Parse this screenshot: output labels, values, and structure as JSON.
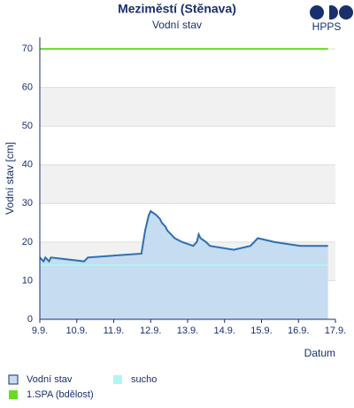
{
  "logo": "HPPS",
  "chart_data": {
    "type": "line",
    "title": "Meziměstí (Stěnava)",
    "subtitle": "Vodní stav",
    "y_label": "Vodní stav [cm]",
    "x_label": "Datum",
    "xlim": [
      9,
      17
    ],
    "xticks": [
      {
        "value": 9,
        "label": "9.9."
      },
      {
        "value": 10,
        "label": "10.9."
      },
      {
        "value": 11,
        "label": "11.9."
      },
      {
        "value": 12,
        "label": "12.9."
      },
      {
        "value": 13,
        "label": "13.9."
      },
      {
        "value": 14,
        "label": "14.9."
      },
      {
        "value": 15,
        "label": "15.9."
      },
      {
        "value": 16,
        "label": "16.9."
      },
      {
        "value": 17,
        "label": "17.9."
      }
    ],
    "ylim": [
      0,
      73
    ],
    "yticks": [
      0,
      10,
      20,
      30,
      40,
      50,
      60,
      70
    ],
    "grid": true,
    "series": [
      {
        "name": "Vodní stav",
        "color": "#2e6fb0",
        "fill": "#c6dcf0",
        "area": true,
        "x": [
          9,
          9.1,
          9.15,
          9.25,
          9.3,
          10.2,
          10.3,
          11.75,
          11.8,
          11.85,
          11.9,
          11.95,
          12.0,
          12.15,
          12.25,
          12.3,
          12.4,
          12.45,
          12.55,
          12.65,
          12.85,
          13.15,
          13.25,
          13.3,
          13.35,
          13.5,
          13.6,
          14.25,
          14.7,
          14.8,
          14.9,
          15.35,
          16.05,
          16.8
        ],
        "values": [
          16,
          15,
          16,
          15,
          16,
          15,
          16,
          17,
          20,
          23,
          25,
          27,
          28,
          27,
          26,
          25,
          24,
          23,
          22,
          21,
          20,
          19,
          20,
          22,
          21,
          20,
          19,
          18,
          19,
          20,
          21,
          20,
          19,
          19
        ]
      },
      {
        "name": "sucho",
        "color": "#aef6f6",
        "x": [
          9,
          16.8
        ],
        "values": [
          14,
          14
        ]
      },
      {
        "name": "1.SPA (bdělost)",
        "color": "#66dd22",
        "x": [
          9,
          16.8
        ],
        "values": [
          70,
          70
        ]
      }
    ]
  }
}
